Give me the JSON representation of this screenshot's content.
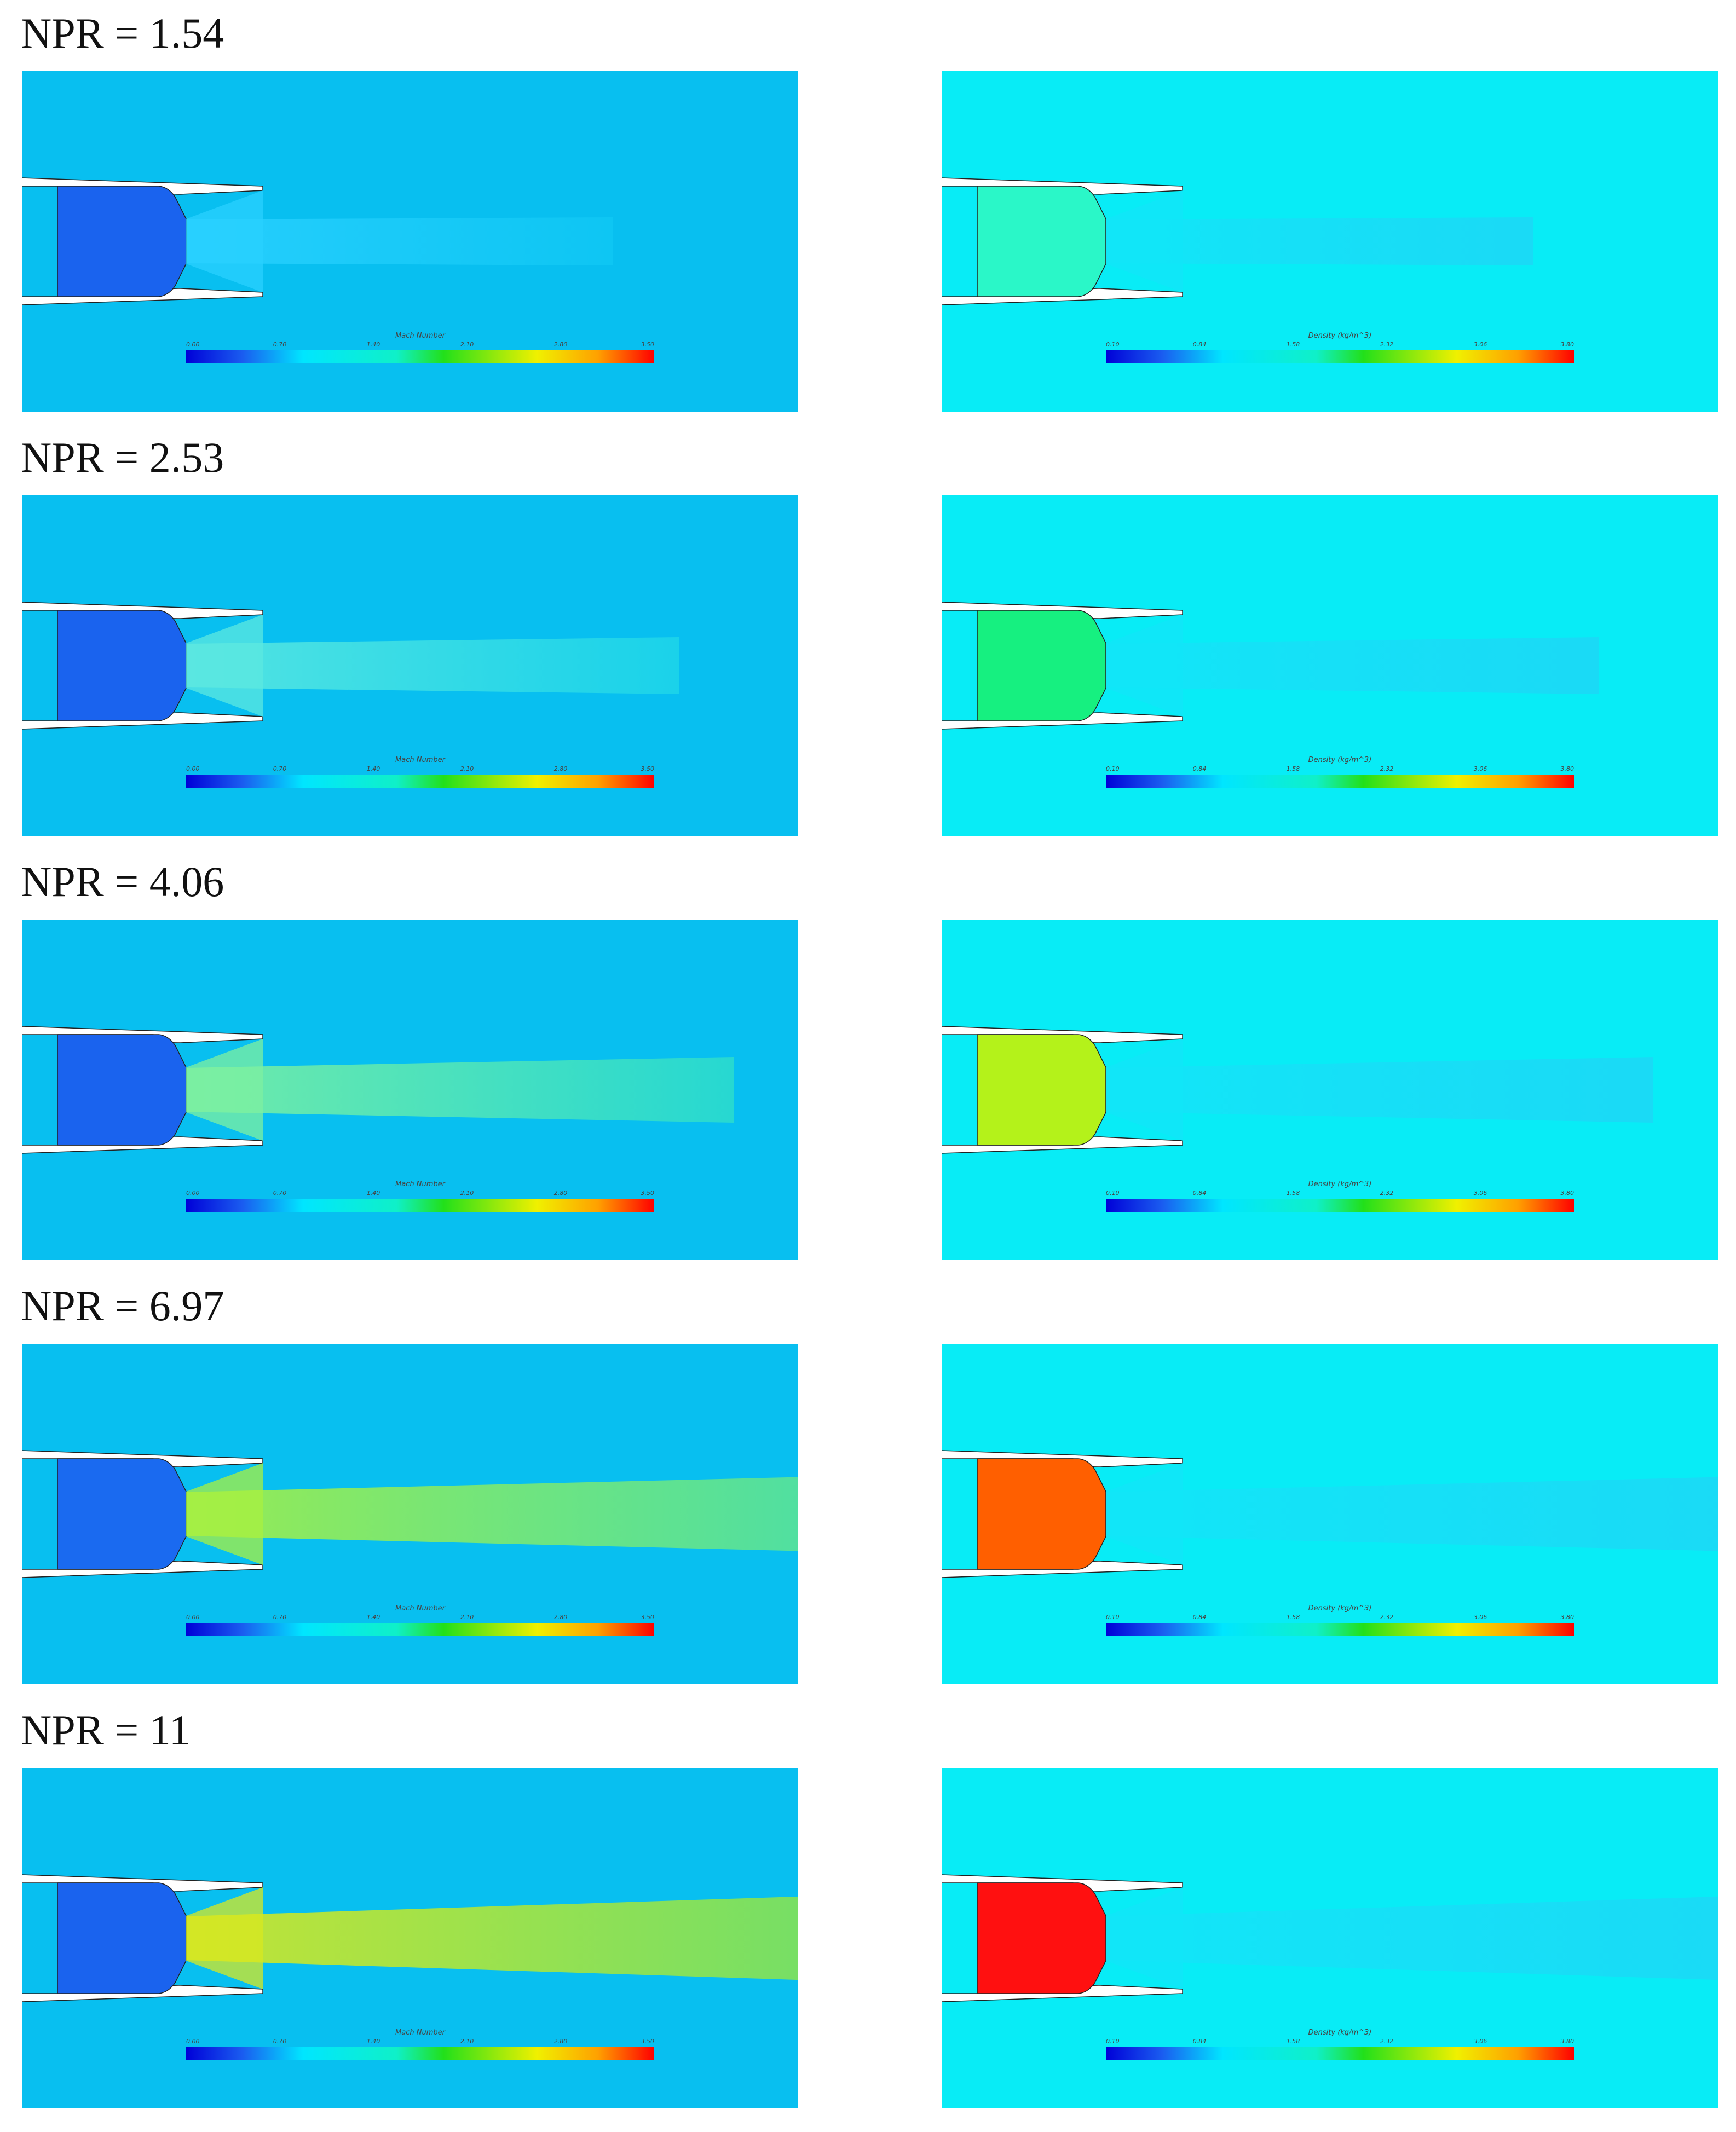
{
  "rows": [
    {
      "label": "NPR = 1.54"
    },
    {
      "label": "NPR = 2.53"
    },
    {
      "label": "NPR = 4.06"
    },
    {
      "label": "NPR = 6.97"
    },
    {
      "label": "NPR = 11"
    }
  ],
  "colorbars": {
    "mach": {
      "title": "Mach Number",
      "ticks": [
        "0.00",
        "0.70",
        "1.40",
        "2.10",
        "2.80",
        "3.50"
      ]
    },
    "density": {
      "title": "Density (kg/m^3)",
      "ticks": [
        "0.10",
        "0.84",
        "1.58",
        "2.32",
        "3.06",
        "3.80"
      ]
    }
  },
  "colors": {
    "ambient_mach": "#08bff0",
    "ambient_density": "#08ecf6",
    "nozzle_wall": "#ffffff"
  },
  "plenum_colors": {
    "mach": [
      "#1a63ee",
      "#1a63ee",
      "#1a63ee",
      "#1a6af0",
      "#1a63ee"
    ],
    "density": [
      "#2af7c8",
      "#16f080",
      "#b4f21a",
      "#ff5f00",
      "#ff1010"
    ]
  }
}
